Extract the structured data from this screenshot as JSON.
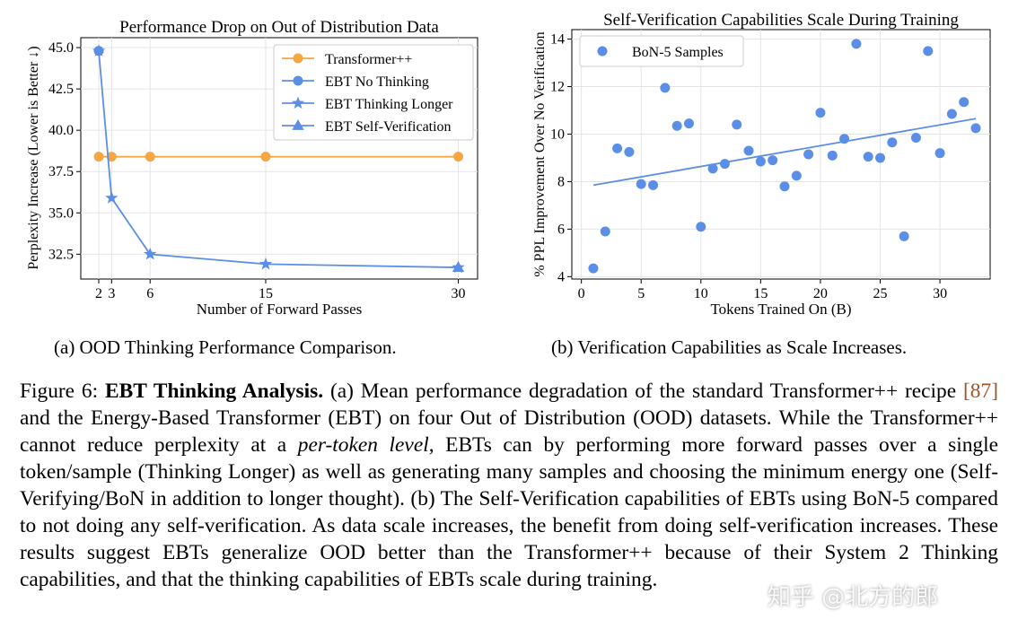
{
  "chart_data": [
    {
      "type": "line",
      "title": "Performance Drop on Out of Distribution Data",
      "xlabel": "Number of Forward Passes",
      "ylabel": "Perplexity Increase (Lower is Better ↓)",
      "x_ticks": [
        2,
        3,
        6,
        15,
        30
      ],
      "y_ticks": [
        "32.5",
        "35.0",
        "37.5",
        "40.0",
        "42.5",
        "45.0"
      ],
      "xlim": [
        0.6,
        31.5
      ],
      "ylim": [
        31.0,
        45.6
      ],
      "grid": true,
      "legend": "top-right",
      "series": [
        {
          "name": "Transformer++",
          "color": "#f5a742",
          "marker": "circle",
          "x": [
            2,
            3,
            6,
            15,
            30
          ],
          "y": [
            38.4,
            38.4,
            38.4,
            38.4,
            38.4
          ]
        },
        {
          "name": "EBT No Thinking",
          "color": "#5b8ee6",
          "marker": "circle",
          "x": [
            2
          ],
          "y": [
            44.8
          ]
        },
        {
          "name": "EBT Thinking Longer",
          "color": "#5b8ee6",
          "marker": "star",
          "x": [
            2,
            3,
            6,
            15,
            30
          ],
          "y": [
            44.8,
            35.9,
            32.5,
            31.9,
            31.7
          ]
        },
        {
          "name": "EBT Self-Verification",
          "color": "#5b8ee6",
          "marker": "triangle",
          "x": [
            30
          ],
          "y": [
            31.7
          ]
        }
      ]
    },
    {
      "type": "scatter",
      "title": "Self-Verification Capabilities Scale During Training",
      "xlabel": "Tokens Trained On (B)",
      "ylabel": "% PPL Improvement Over No Verification",
      "x_ticks": [
        "0",
        "5",
        "10",
        "15",
        "20",
        "25",
        "30"
      ],
      "y_ticks": [
        "4",
        "6",
        "8",
        "10",
        "12",
        "14"
      ],
      "xlim": [
        -0.8,
        34.2
      ],
      "ylim": [
        3.9,
        14.4
      ],
      "grid": true,
      "legend": "top-left",
      "series": [
        {
          "name": "BoN-5 Samples",
          "color": "#5b8ee6",
          "points": [
            [
              1,
              4.35
            ],
            [
              2,
              5.9
            ],
            [
              3,
              9.4
            ],
            [
              4,
              9.25
            ],
            [
              5,
              7.9
            ],
            [
              6,
              7.85
            ],
            [
              7,
              11.95
            ],
            [
              8,
              10.35
            ],
            [
              9,
              10.45
            ],
            [
              10,
              6.1
            ],
            [
              11,
              8.55
            ],
            [
              12,
              8.75
            ],
            [
              13,
              10.4
            ],
            [
              14,
              9.3
            ],
            [
              15,
              8.85
            ],
            [
              16,
              8.9
            ],
            [
              17,
              7.8
            ],
            [
              18,
              8.25
            ],
            [
              19,
              9.15
            ],
            [
              20,
              10.9
            ],
            [
              21,
              9.1
            ],
            [
              22,
              9.8
            ],
            [
              23,
              13.8
            ],
            [
              24,
              9.05
            ],
            [
              25,
              9.0
            ],
            [
              26,
              9.65
            ],
            [
              27,
              5.7
            ],
            [
              28,
              9.85
            ],
            [
              29,
              13.5
            ],
            [
              30,
              9.2
            ],
            [
              31,
              10.85
            ],
            [
              32,
              11.35
            ],
            [
              33,
              10.25
            ]
          ]
        },
        {
          "name": "",
          "color": "#5b8ee6",
          "kind": "trendline",
          "x": [
            1,
            33
          ],
          "y": [
            7.85,
            10.65
          ]
        }
      ]
    }
  ],
  "subcaptions": {
    "a": "(a) OOD Thinking Performance Comparison.",
    "b": "(b) Verification Capabilities as Scale Increases."
  },
  "caption": {
    "label": "Figure 6:",
    "bold_title": "EBT Thinking Analysis.",
    "t1": " (a) Mean performance degradation of the standard Transformer++ recipe ",
    "cite": "[87]",
    "t2": " and the Energy-Based Transformer (EBT) on four Out of Distribution (OOD) datasets. While the Transformer++ cannot reduce perplexity at a ",
    "italic": "per-token level",
    "t3": ", EBTs can by performing more forward passes over a single token/sample (Thinking Longer) as well as generating many samples and choosing the minimum energy one (Self-Verifying/BoN in addition to longer thought). (b) The Self-Verification capabilities of EBTs using BoN-5 compared to not doing any self-verification. As data scale increases, the benefit from doing self-verification increases. These results suggest EBTs generalize OOD better than the Transformer++ because of their System 2 Thinking capabilities, and that the thinking capabilities of EBTs scale during training."
  },
  "watermark": "知乎 @北方的郎"
}
